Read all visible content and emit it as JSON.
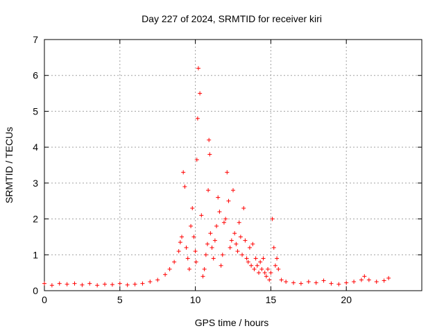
{
  "chart_data": {
    "type": "scatter",
    "title": "Day 227 of 2024, SRMTID for receiver kiri",
    "xlabel": "GPS time / hours",
    "ylabel": "SRMTID / TECUs",
    "xlim": [
      0,
      25
    ],
    "ylim": [
      0,
      7
    ],
    "xticks": [
      0,
      5,
      10,
      15,
      20
    ],
    "yticks": [
      0,
      1,
      2,
      3,
      4,
      5,
      6,
      7
    ],
    "grid": true,
    "marker": "+",
    "color": "#ff0000",
    "series": [
      {
        "name": "SRMTID",
        "x": [
          0.0,
          0.5,
          1.0,
          1.5,
          2.0,
          2.5,
          3.0,
          3.5,
          4.0,
          4.5,
          5.0,
          5.5,
          6.0,
          6.5,
          7.0,
          7.5,
          8.0,
          8.3,
          8.6,
          8.9,
          9.0,
          9.1,
          9.2,
          9.3,
          9.4,
          9.5,
          9.6,
          9.7,
          9.8,
          9.9,
          10.0,
          10.05,
          10.1,
          10.15,
          10.2,
          10.3,
          10.4,
          10.5,
          10.6,
          10.7,
          10.8,
          10.85,
          10.9,
          10.95,
          11.0,
          11.1,
          11.2,
          11.3,
          11.4,
          11.5,
          11.6,
          11.7,
          11.8,
          11.9,
          12.0,
          12.1,
          12.2,
          12.3,
          12.4,
          12.5,
          12.6,
          12.7,
          12.8,
          12.9,
          13.0,
          13.1,
          13.2,
          13.3,
          13.4,
          13.5,
          13.6,
          13.7,
          13.8,
          13.9,
          14.0,
          14.1,
          14.2,
          14.3,
          14.4,
          14.5,
          14.6,
          14.7,
          14.8,
          14.9,
          15.0,
          15.1,
          15.2,
          15.3,
          15.4,
          15.5,
          15.7,
          16.0,
          16.5,
          17.0,
          17.5,
          18.0,
          18.5,
          19.0,
          19.5,
          20.0,
          20.5,
          21.0,
          21.2,
          21.5,
          22.0,
          22.5,
          22.8
        ],
        "y": [
          0.2,
          0.15,
          0.2,
          0.18,
          0.2,
          0.16,
          0.2,
          0.15,
          0.18,
          0.17,
          0.2,
          0.16,
          0.18,
          0.2,
          0.25,
          0.3,
          0.45,
          0.6,
          0.8,
          1.1,
          1.35,
          1.5,
          3.3,
          2.9,
          1.2,
          0.9,
          0.6,
          1.8,
          2.3,
          1.5,
          1.1,
          0.8,
          3.65,
          4.8,
          6.2,
          5.5,
          2.1,
          0.4,
          0.6,
          1.0,
          1.3,
          2.8,
          4.2,
          3.8,
          1.6,
          1.2,
          0.9,
          1.4,
          1.8,
          2.6,
          2.2,
          0.7,
          1.0,
          1.9,
          2.0,
          3.3,
          2.5,
          1.2,
          1.4,
          2.8,
          1.6,
          1.3,
          1.1,
          1.9,
          1.5,
          1.0,
          2.3,
          1.4,
          0.9,
          0.8,
          1.2,
          0.7,
          1.3,
          0.6,
          0.9,
          0.7,
          0.5,
          0.8,
          0.6,
          0.9,
          0.5,
          0.4,
          0.6,
          0.3,
          0.5,
          2.0,
          1.2,
          0.7,
          0.9,
          0.6,
          0.3,
          0.25,
          0.22,
          0.2,
          0.25,
          0.22,
          0.28,
          0.2,
          0.18,
          0.22,
          0.25,
          0.3,
          0.4,
          0.3,
          0.25,
          0.28,
          0.35
        ]
      }
    ]
  }
}
